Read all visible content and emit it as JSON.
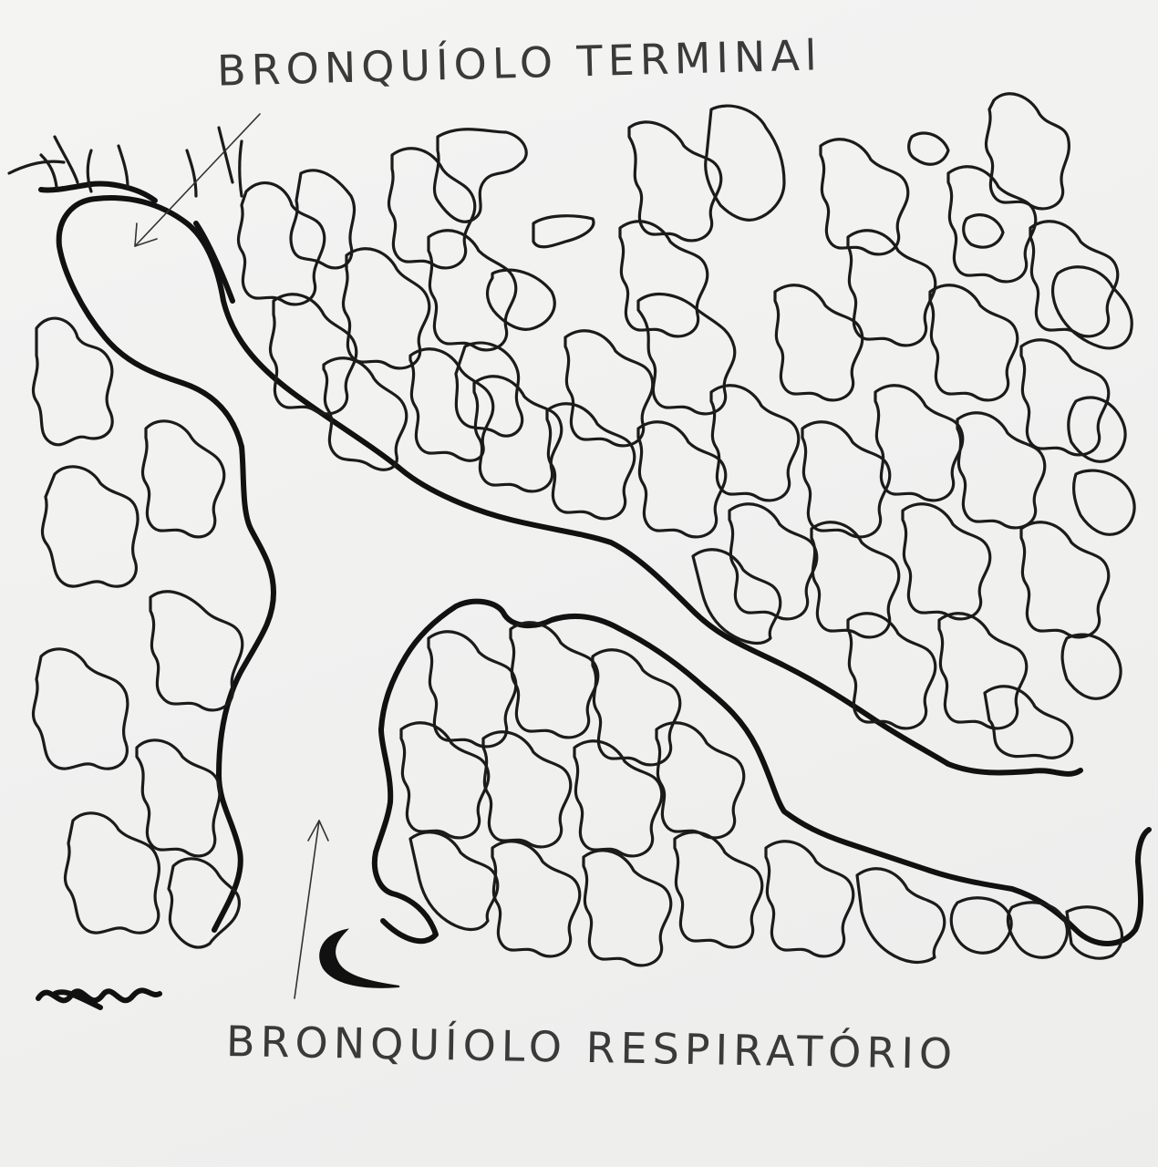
{
  "labels": {
    "terminal": "BRONQUÍOLO TERMINAl",
    "respiratory": "BRONQUÍOLO RESPIRATÓRIO"
  },
  "colors": {
    "ink": "#111111",
    "paper": "#f1f1f0",
    "pencil": "#3a3a3a"
  }
}
